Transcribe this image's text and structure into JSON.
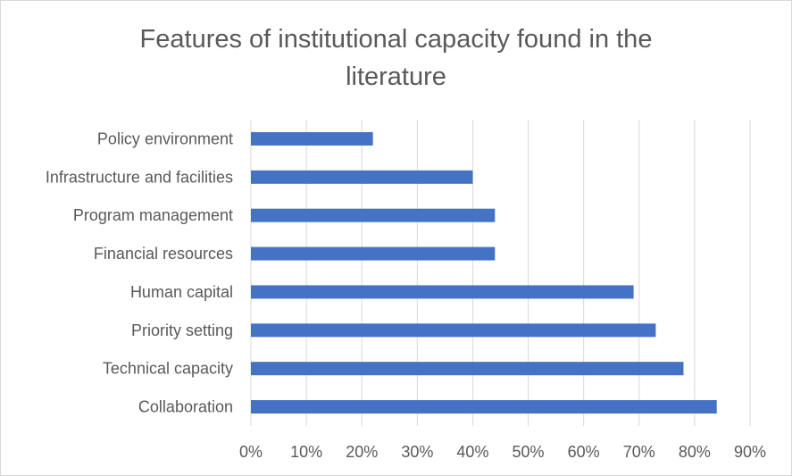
{
  "chart_data": {
    "type": "bar",
    "orientation": "horizontal",
    "title": "Features of institutional capacity found in the literature",
    "title_lines": [
      "Features of institutional capacity found in the",
      "literature"
    ],
    "categories": [
      "Policy environment",
      "Infrastructure and facilities",
      "Program management",
      "Financial resources",
      "Human capital",
      "Priority setting",
      "Technical capacity",
      "Collaboration"
    ],
    "series": [
      {
        "values": [
          22,
          40,
          44,
          44,
          69,
          73,
          78,
          84
        ]
      }
    ],
    "x_ticks": [
      "0%",
      "10%",
      "20%",
      "30%",
      "40%",
      "50%",
      "60%",
      "70%",
      "80%",
      "90%"
    ],
    "xlim": [
      0,
      90
    ],
    "bar_color": "#4472c4",
    "grid": true,
    "legend": "none"
  }
}
